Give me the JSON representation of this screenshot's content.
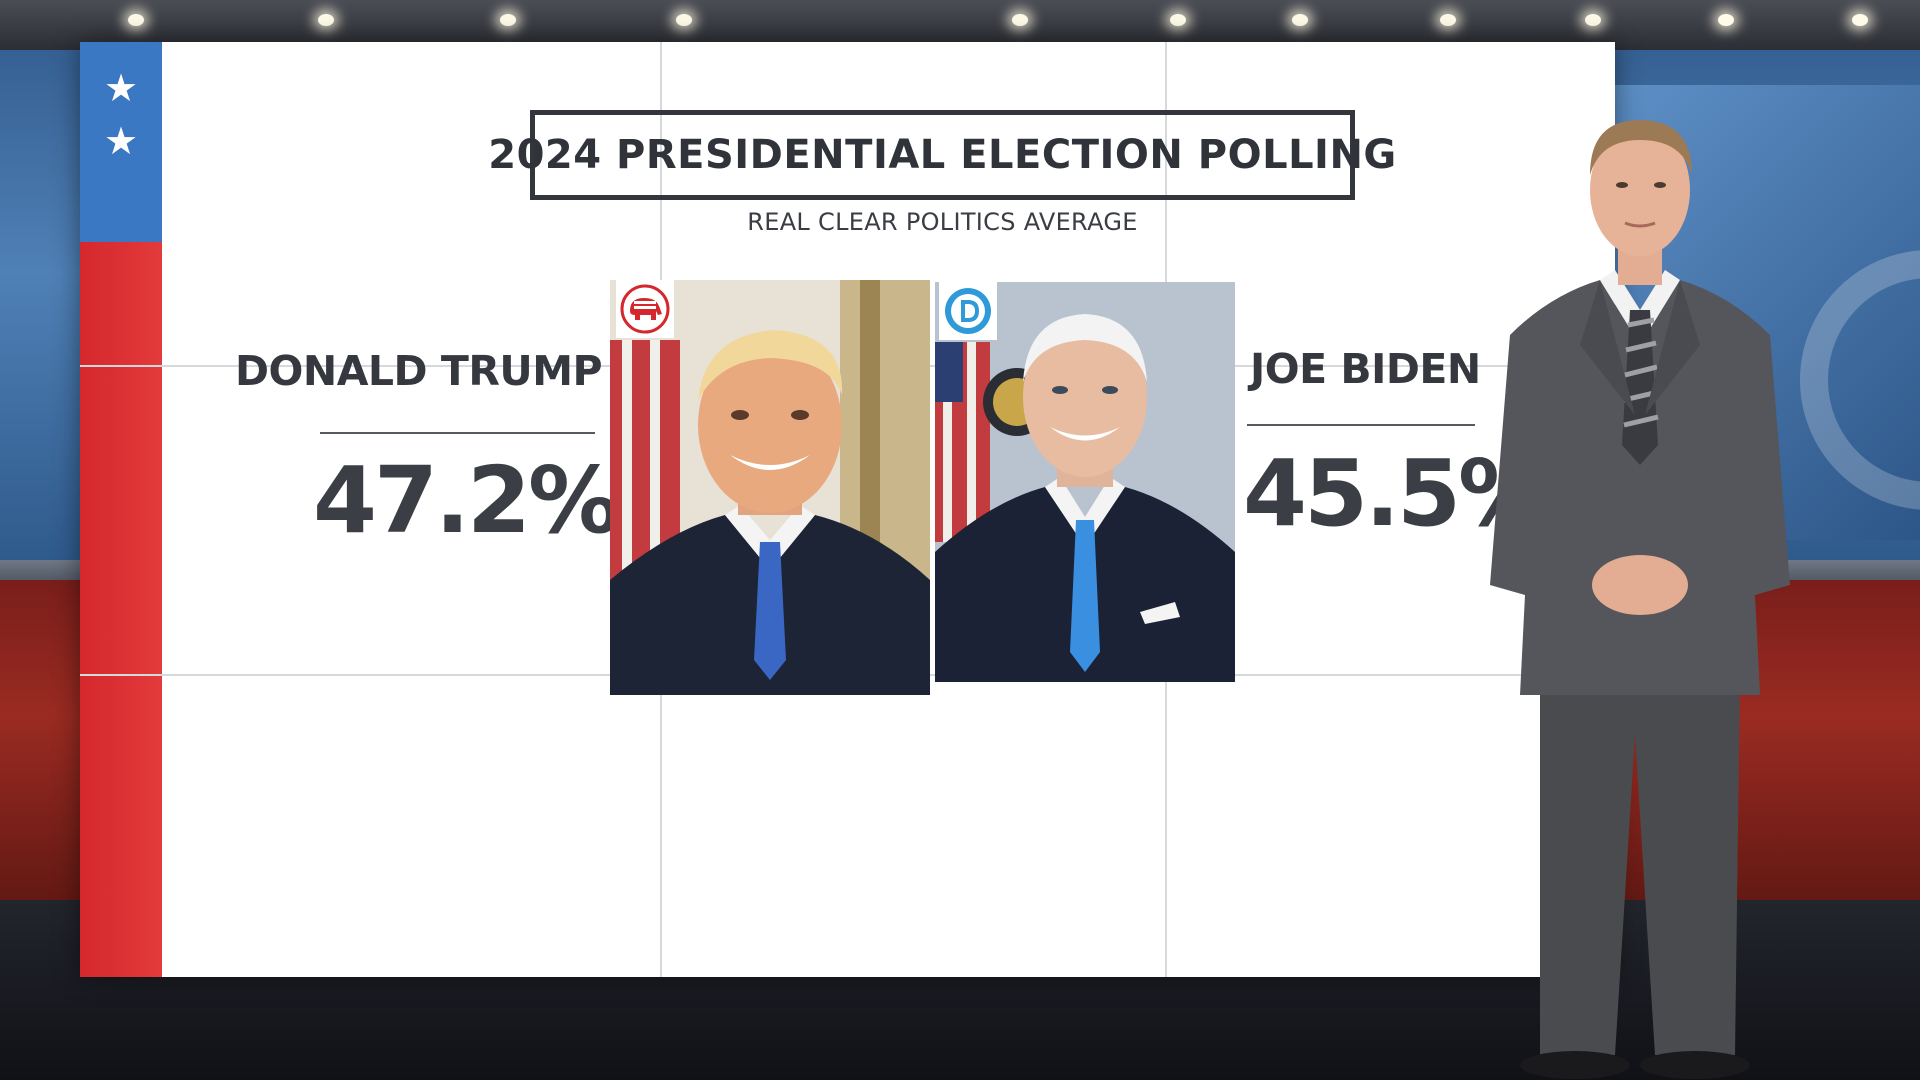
{
  "graphic": {
    "title": "2024 PRESIDENTIAL ELECTION POLLING",
    "subtitle": "REAL CLEAR POLITICS AVERAGE"
  },
  "candidates": [
    {
      "name": "DONALD TRUMP",
      "percent": "47.2%",
      "party": "Republican",
      "party_icon": "republican-elephant-icon"
    },
    {
      "name": "JOE BIDEN",
      "percent": "45.5%",
      "party": "Democratic",
      "party_icon": "democratic-d-icon"
    }
  ],
  "colors": {
    "wall": "#ffffff",
    "text_dark": "#33373d",
    "flag_blue": "#3b78c3",
    "flag_red": "#d4282d",
    "republican_red": "#d4282d",
    "democratic_blue": "#2f9ad8",
    "studio_blue": "#4f80b6",
    "studio_red": "#9a2b22"
  },
  "icons": [
    "star-icon",
    "republican-elephant-icon",
    "democratic-d-icon"
  ]
}
